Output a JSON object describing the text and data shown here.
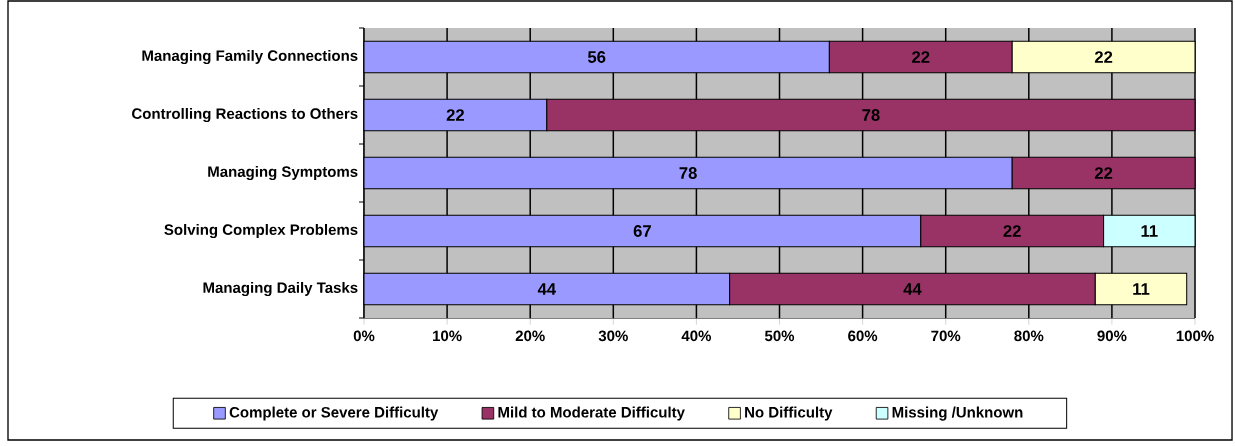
{
  "chart_data": {
    "type": "bar",
    "orientation": "horizontal",
    "stacked": true,
    "data_labels": true,
    "grid": "x",
    "legend": "bottom",
    "categories": [
      "Managing Family Connections",
      "Controlling Reactions to Others",
      "Managing Symptoms",
      "Solving Complex Problems",
      "Managing Daily Tasks"
    ],
    "series": [
      {
        "name": "Complete or Severe Difficulty",
        "color": "#9999ff",
        "values": [
          56,
          22,
          78,
          67,
          44
        ]
      },
      {
        "name": "Mild to Moderate Difficulty",
        "color": "#993366",
        "values": [
          22,
          78,
          22,
          22,
          44
        ]
      },
      {
        "name": "No Difficulty",
        "color": "#ffffcc",
        "values": [
          22,
          null,
          null,
          null,
          11
        ]
      },
      {
        "name": "Missing /Unknown",
        "color": "#ccffff",
        "values": [
          null,
          null,
          null,
          11,
          null
        ]
      }
    ],
    "xlim": [
      0,
      100
    ],
    "xticks": [
      {
        "value": 0,
        "label": "0%"
      },
      {
        "value": 10,
        "label": "10%"
      },
      {
        "value": 20,
        "label": "20%"
      },
      {
        "value": 30,
        "label": "30%"
      },
      {
        "value": 40,
        "label": "40%"
      },
      {
        "value": 50,
        "label": "50%"
      },
      {
        "value": 60,
        "label": "60%"
      },
      {
        "value": 70,
        "label": "70%"
      },
      {
        "value": 80,
        "label": "80%"
      },
      {
        "value": 90,
        "label": "90%"
      },
      {
        "value": 100,
        "label": "100%"
      }
    ]
  }
}
